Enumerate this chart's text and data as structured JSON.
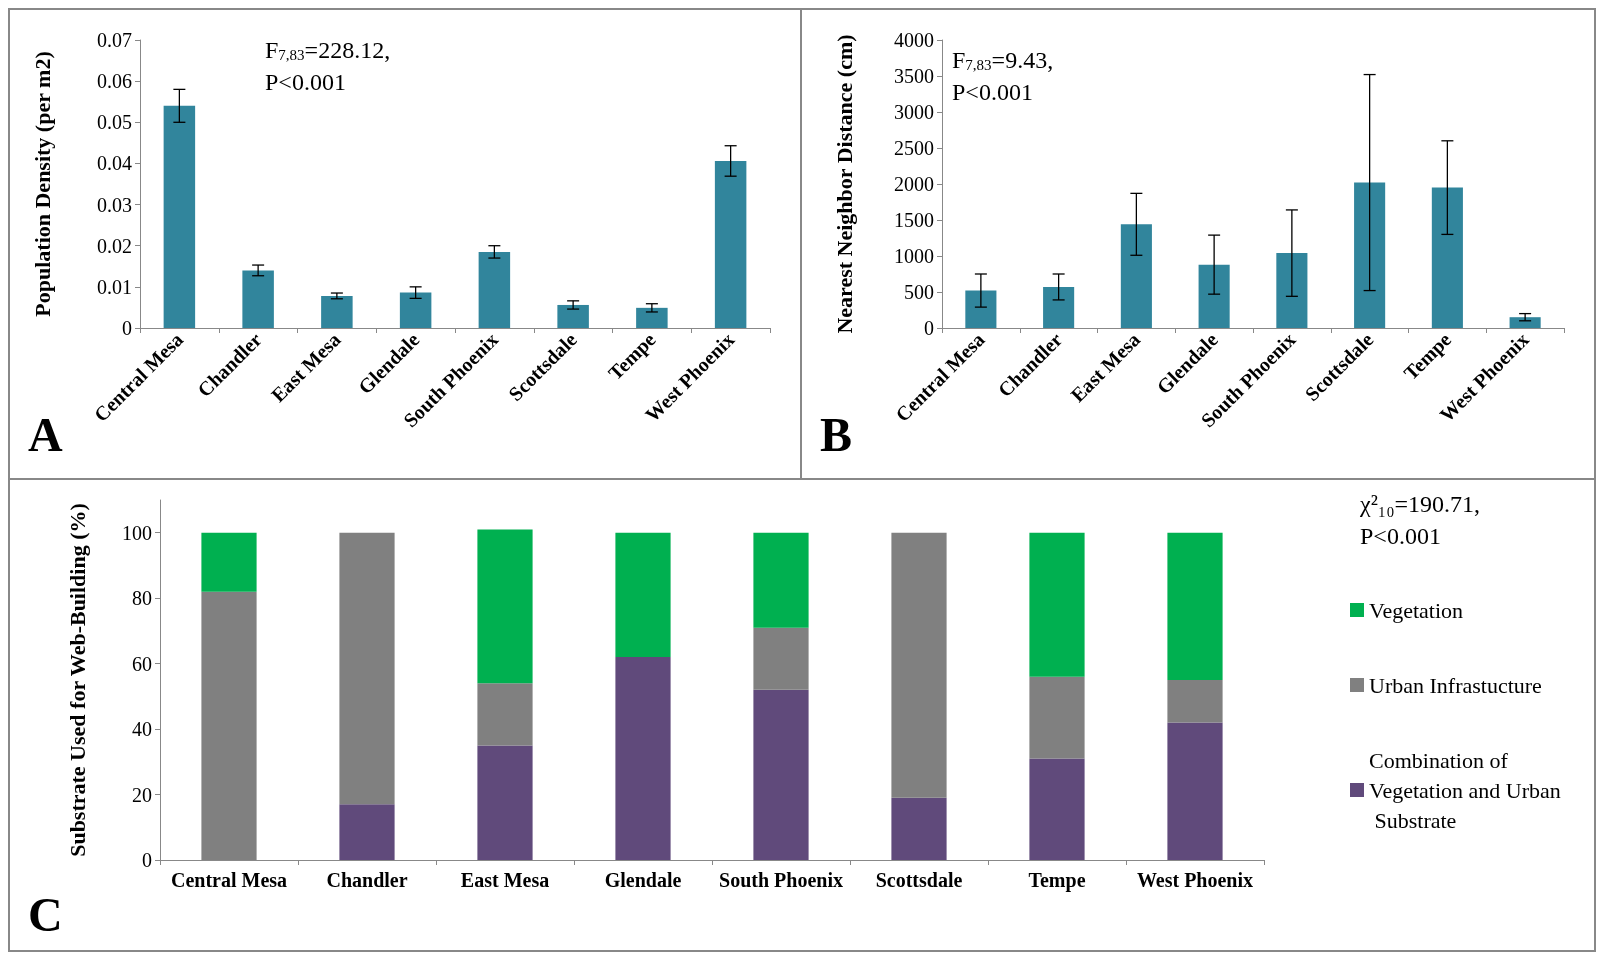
{
  "chart_data": [
    {
      "type": "bar",
      "ylabel": "Population Density (per m2)",
      "categories": [
        "Central Mesa",
        "Chandler",
        "East Mesa",
        "Glendale",
        "South Phoenix",
        "Scottsdale",
        "Tempe",
        "West Phoenix"
      ],
      "series": [
        {
          "color": "#31859c",
          "values": [
            0.054,
            0.014,
            0.0078,
            0.0086,
            0.0185,
            0.0056,
            0.0049,
            0.0406
          ],
          "errors": [
            0.004,
            0.0013,
            0.0007,
            0.0014,
            0.0015,
            0.001,
            0.001,
            0.0037
          ]
        }
      ],
      "ylim": [
        0,
        0.07
      ],
      "yticks": [
        0,
        0.01,
        0.02,
        0.03,
        0.04,
        0.05,
        0.06,
        0.07
      ],
      "grid": false,
      "legend": false,
      "annotations": [
        "A",
        "F$_{7,83}$=228.12,",
        "P<0.001"
      ]
    },
    {
      "type": "bar",
      "ylabel": "Nearest Neighbor Distance (cm)",
      "categories": [
        "Central Mesa",
        "Chandler",
        "East Mesa",
        "Glendale",
        "South Phoenix",
        "Scottsdale",
        "Tempe",
        "West Phoenix"
      ],
      "series": [
        {
          "color": "#31859c",
          "values": [
            520,
            570,
            1440,
            880,
            1040,
            2020,
            1950,
            150
          ],
          "errors": [
            230,
            180,
            430,
            410,
            600,
            1500,
            650,
            50
          ]
        }
      ],
      "ylim": [
        0,
        4000
      ],
      "yticks": [
        0,
        500,
        1000,
        1500,
        2000,
        2500,
        3000,
        3500,
        4000
      ],
      "grid": false,
      "legend": false,
      "annotations": [
        "B",
        "F$_{7,83}$=9.43,",
        "P<0.001"
      ]
    },
    {
      "type": "bar",
      "stacked": true,
      "ylabel": "Substrate Used for Web-Building (%)",
      "categories": [
        "Central Mesa",
        "Chandler",
        "East Mesa",
        "Glendale",
        "South Phoenix",
        "Scottsdale",
        "Tempe",
        "West Phoenix"
      ],
      "series": [
        {
          "name": "Combination of Vegetation and Urban Substrate",
          "color": "#604a7b",
          "values": [
            0,
            17,
            35,
            62,
            52,
            19,
            31,
            42
          ]
        },
        {
          "name": "Urban Infrastucture",
          "color": "#808080",
          "values": [
            82,
            83,
            19,
            0,
            19,
            81,
            25,
            13
          ]
        },
        {
          "name": "Vegetation",
          "color": "#00b050",
          "values": [
            18,
            0,
            47,
            38,
            29,
            0,
            44,
            45
          ]
        }
      ],
      "ylim": [
        0,
        110
      ],
      "yticks": [
        0,
        20,
        40,
        60,
        80,
        100
      ],
      "grid": false,
      "legend": "right",
      "annotations": [
        "C",
        "χ²₁₀=190.71,",
        "P<0.001"
      ]
    }
  ]
}
